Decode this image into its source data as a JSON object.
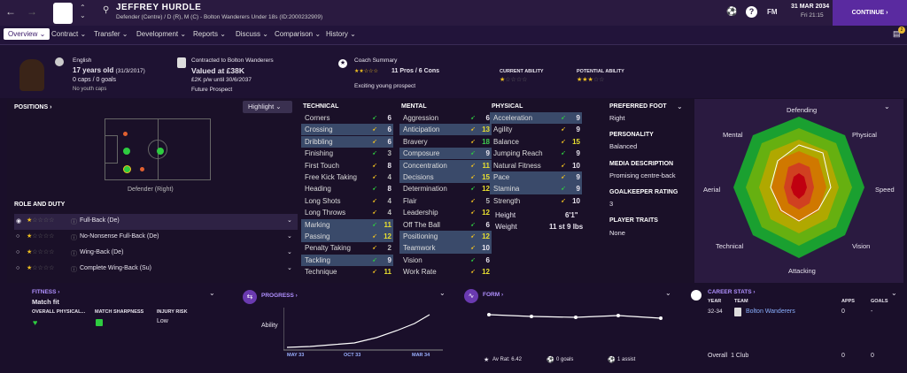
{
  "header": {
    "name": "JEFFREY HURDLE",
    "subtitle": "Defender (Centre) / D (R), M (C) - Bolton Wanderers Under 18s (ID:2000232909)",
    "date": "31 MAR 2034",
    "day_time": "Fri 21:15",
    "fm": "FM",
    "continue": "CONTINUE",
    "help": "?",
    "notif": "2"
  },
  "nav": [
    "Overview",
    "Contract",
    "Transfer",
    "Development",
    "Reports",
    "Discuss",
    "Comparison",
    "History"
  ],
  "info": {
    "nationality": "English",
    "age": "17 years old",
    "dob": "(31/3/2017)",
    "caps": "0 caps / 0 goals",
    "youth": "No youth caps",
    "contract_to": "Contracted to Bolton Wanderers",
    "value": "Valued at £38K",
    "wage": "£2K p/w until 30/6/2037",
    "prospect": "Future Prospect",
    "coach_title": "Coach Summary",
    "pros_cons": "11 Pros / 6 Cons",
    "coach_text": "Exciting young prospect",
    "ca_label": "CURRENT ABILITY",
    "pa_label": "POTENTIAL ABILITY"
  },
  "positions": {
    "title": "POSITIONS",
    "highlight": "Highlight",
    "role_label": "Defender (Right)",
    "role_duty": "ROLE AND DUTY",
    "roles": [
      {
        "name": "Full-Back (De)"
      },
      {
        "name": "No-Nonsense Full-Back (De)"
      },
      {
        "name": "Wing-Back (De)"
      },
      {
        "name": "Complete Wing-Back (Su)"
      }
    ]
  },
  "technical": {
    "title": "TECHNICAL",
    "rows": [
      {
        "n": "Corners",
        "v": "6"
      },
      {
        "n": "Crossing",
        "v": "6"
      },
      {
        "n": "Dribbling",
        "v": "6"
      },
      {
        "n": "Finishing",
        "v": "3"
      },
      {
        "n": "First Touch",
        "v": "8"
      },
      {
        "n": "Free Kick Taking",
        "v": "4"
      },
      {
        "n": "Heading",
        "v": "8"
      },
      {
        "n": "Long Shots",
        "v": "4"
      },
      {
        "n": "Long Throws",
        "v": "4"
      },
      {
        "n": "Marking",
        "v": "11"
      },
      {
        "n": "Passing",
        "v": "12"
      },
      {
        "n": "Penalty Taking",
        "v": "2"
      },
      {
        "n": "Tackling",
        "v": "9"
      },
      {
        "n": "Technique",
        "v": "11"
      }
    ]
  },
  "mental": {
    "title": "MENTAL",
    "rows": [
      {
        "n": "Aggression",
        "v": "6"
      },
      {
        "n": "Anticipation",
        "v": "13"
      },
      {
        "n": "Bravery",
        "v": "18"
      },
      {
        "n": "Composure",
        "v": "9"
      },
      {
        "n": "Concentration",
        "v": "11"
      },
      {
        "n": "Decisions",
        "v": "15"
      },
      {
        "n": "Determination",
        "v": "12"
      },
      {
        "n": "Flair",
        "v": "5"
      },
      {
        "n": "Leadership",
        "v": "12"
      },
      {
        "n": "Off The Ball",
        "v": "6"
      },
      {
        "n": "Positioning",
        "v": "12"
      },
      {
        "n": "Teamwork",
        "v": "10"
      },
      {
        "n": "Vision",
        "v": "6"
      },
      {
        "n": "Work Rate",
        "v": "12"
      }
    ]
  },
  "physical": {
    "title": "PHYSICAL",
    "rows": [
      {
        "n": "Acceleration",
        "v": "9"
      },
      {
        "n": "Agility",
        "v": "9"
      },
      {
        "n": "Balance",
        "v": "15"
      },
      {
        "n": "Jumping Reach",
        "v": "9"
      },
      {
        "n": "Natural Fitness",
        "v": "10"
      },
      {
        "n": "Pace",
        "v": "9"
      },
      {
        "n": "Stamina",
        "v": "9"
      },
      {
        "n": "Strength",
        "v": "10"
      }
    ],
    "height_label": "Height",
    "height": "6'1\"",
    "weight_label": "Weight",
    "weight": "11 st 9 lbs"
  },
  "details": {
    "pf_label": "PREFERRED FOOT",
    "pf": "Right",
    "pers_label": "PERSONALITY",
    "pers": "Balanced",
    "media_label": "MEDIA DESCRIPTION",
    "media": "Promising centre-back",
    "gk_label": "GOALKEEPER RATING",
    "gk": "3",
    "traits_label": "PLAYER TRAITS",
    "traits": "None"
  },
  "radar": {
    "labels": [
      "Defending",
      "Physical",
      "Speed",
      "Vision",
      "Attacking",
      "Technical",
      "Aerial",
      "Mental"
    ]
  },
  "fitness": {
    "title": "FITNESS",
    "status": "Match fit",
    "l1": "OVERALL PHYSICAL...",
    "l2": "MATCH SHARPNESS",
    "l3": "INJURY RISK",
    "risk": "Low"
  },
  "progress": {
    "title": "PROGRESS",
    "ylabel": "Ability",
    "x": [
      "MAY 33",
      "OCT 33",
      "MAR 34"
    ]
  },
  "form": {
    "title": "FORM",
    "av": "Av Rat: 6.42",
    "goals": "0 goals",
    "assist": "1 assist"
  },
  "career": {
    "title": "CAREER STATS",
    "year_h": "YEAR",
    "team_h": "TEAM",
    "apps_h": "APPS",
    "goals_h": "GOALS",
    "year": "32-34",
    "team": "Bolton Wanderers",
    "apps": "0",
    "goals": "-",
    "overall": "Overall",
    "clubs": "1 Club",
    "oapps": "0",
    "ogoals": "0"
  }
}
